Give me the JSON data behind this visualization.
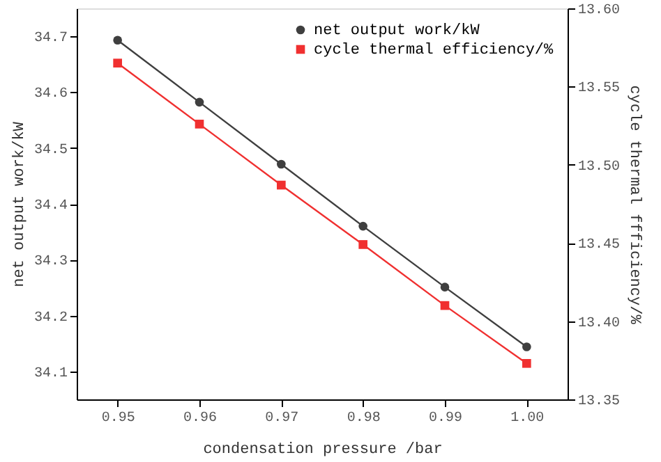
{
  "chart_data": {
    "type": "line",
    "xlabel": "condensation pressure /bar",
    "ylabel": "net output work/kW",
    "y2label": "cycle thermal ffficiency/%",
    "x": [
      0.95,
      0.96,
      0.97,
      0.98,
      0.99,
      1.0
    ],
    "series": [
      {
        "name": "net output work/kW",
        "color": "#3f3f3f",
        "marker": "circle",
        "values": [
          34.693,
          34.582,
          34.471,
          34.36,
          34.251,
          34.144
        ]
      },
      {
        "name": "cycle thermal efficiency/%",
        "color": "#f03030",
        "marker": "square",
        "axis": "y2",
        "values": [
          13.565,
          13.526,
          13.487,
          13.449,
          13.41,
          13.373
        ]
      }
    ],
    "xlim": [
      0.945,
      1.005
    ],
    "xticks": [
      0.95,
      0.96,
      0.97,
      0.98,
      0.99,
      {
        "value": 1.0,
        "label": "1.00"
      }
    ],
    "ylim": [
      34.05,
      34.75
    ],
    "yticks": [
      34.1,
      34.2,
      34.3,
      34.4,
      34.5,
      34.6,
      34.7
    ],
    "y2lim": [
      13.35,
      13.6
    ],
    "y2ticks": [
      13.35,
      {
        "value": 13.4,
        "label": "13.40"
      },
      13.45,
      {
        "value": 13.5,
        "label": "13.50"
      },
      13.55,
      {
        "value": 13.6,
        "label": "13.60"
      }
    ],
    "legend": "top right",
    "grid": false,
    "line_style": "solid"
  }
}
